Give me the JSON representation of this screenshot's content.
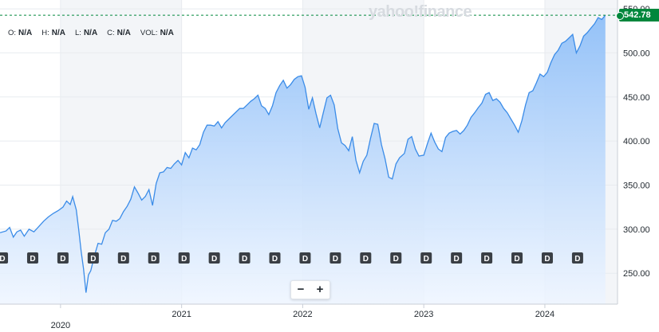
{
  "watermark": "yahoo!finance",
  "ohlc": {
    "o_label": "O:",
    "o_value": "N/A",
    "h_label": "H:",
    "h_value": "N/A",
    "l_label": "L:",
    "l_value": "N/A",
    "c_label": "C:",
    "c_value": "N/A",
    "vol_label": "VOL:",
    "vol_value": "N/A"
  },
  "last_price": "542.78",
  "zoom": {
    "minus": "−",
    "plus": "+"
  },
  "dividend_marker": "D",
  "colors": {
    "line": "#3b8ce8",
    "fill_top": "#8fbff8",
    "fill_bottom": "#f4f9ff",
    "last_price": "#00873c",
    "band": "#f3f5f8",
    "grid": "#e8ebef"
  },
  "chart_data": {
    "type": "area",
    "x_tick_labels": [
      "2020",
      "2021",
      "2022",
      "2023",
      "2024"
    ],
    "y_tick_labels": [
      "250.00",
      "300.00",
      "350.00",
      "400.00",
      "450.00",
      "500.00",
      "550.00"
    ],
    "ylim": [
      215,
      560
    ],
    "xlim": [
      2019.5,
      2024.6
    ],
    "grid": true,
    "last_value": 542.78,
    "dividend_dates": [
      2019.52,
      2019.77,
      2020.02,
      2020.27,
      2020.52,
      2020.77,
      2021.02,
      2021.27,
      2021.52,
      2021.77,
      2022.02,
      2022.27,
      2022.52,
      2022.77,
      2023.02,
      2023.27,
      2023.52,
      2023.77,
      2024.02,
      2024.27
    ],
    "series": [
      {
        "points": [
          [
            2019.5,
            296
          ],
          [
            2019.55,
            298
          ],
          [
            2019.58,
            302
          ],
          [
            2019.61,
            291
          ],
          [
            2019.64,
            297
          ],
          [
            2019.67,
            299
          ],
          [
            2019.7,
            292
          ],
          [
            2019.74,
            300
          ],
          [
            2019.78,
            297
          ],
          [
            2019.82,
            303
          ],
          [
            2019.86,
            309
          ],
          [
            2019.9,
            314
          ],
          [
            2019.94,
            318
          ],
          [
            2019.98,
            321
          ],
          [
            2020.02,
            325
          ],
          [
            2020.05,
            332
          ],
          [
            2020.08,
            328
          ],
          [
            2020.1,
            337
          ],
          [
            2020.13,
            322
          ],
          [
            2020.15,
            300
          ],
          [
            2020.17,
            275
          ],
          [
            2020.19,
            255
          ],
          [
            2020.21,
            228
          ],
          [
            2020.23,
            248
          ],
          [
            2020.25,
            253
          ],
          [
            2020.28,
            270
          ],
          [
            2020.31,
            284
          ],
          [
            2020.34,
            283
          ],
          [
            2020.37,
            296
          ],
          [
            2020.4,
            300
          ],
          [
            2020.43,
            310
          ],
          [
            2020.46,
            309
          ],
          [
            2020.49,
            312
          ],
          [
            2020.52,
            320
          ],
          [
            2020.55,
            326
          ],
          [
            2020.58,
            334
          ],
          [
            2020.61,
            348
          ],
          [
            2020.64,
            341
          ],
          [
            2020.67,
            333
          ],
          [
            2020.7,
            337
          ],
          [
            2020.73,
            345
          ],
          [
            2020.76,
            327
          ],
          [
            2020.79,
            352
          ],
          [
            2020.82,
            364
          ],
          [
            2020.85,
            365
          ],
          [
            2020.88,
            370
          ],
          [
            2020.91,
            369
          ],
          [
            2020.94,
            374
          ],
          [
            2020.97,
            378
          ],
          [
            2021.0,
            373
          ],
          [
            2021.03,
            387
          ],
          [
            2021.06,
            381
          ],
          [
            2021.09,
            392
          ],
          [
            2021.12,
            390
          ],
          [
            2021.15,
            396
          ],
          [
            2021.18,
            410
          ],
          [
            2021.21,
            418
          ],
          [
            2021.24,
            418
          ],
          [
            2021.27,
            417
          ],
          [
            2021.3,
            422
          ],
          [
            2021.33,
            415
          ],
          [
            2021.36,
            421
          ],
          [
            2021.39,
            425
          ],
          [
            2021.42,
            429
          ],
          [
            2021.45,
            433
          ],
          [
            2021.48,
            437
          ],
          [
            2021.51,
            437
          ],
          [
            2021.54,
            441
          ],
          [
            2021.57,
            445
          ],
          [
            2021.6,
            448
          ],
          [
            2021.63,
            452
          ],
          [
            2021.66,
            440
          ],
          [
            2021.69,
            437
          ],
          [
            2021.72,
            430
          ],
          [
            2021.75,
            440
          ],
          [
            2021.78,
            455
          ],
          [
            2021.81,
            463
          ],
          [
            2021.84,
            469
          ],
          [
            2021.87,
            460
          ],
          [
            2021.9,
            464
          ],
          [
            2021.93,
            470
          ],
          [
            2021.96,
            473
          ],
          [
            2021.99,
            474
          ],
          [
            2022.02,
            461
          ],
          [
            2022.05,
            436
          ],
          [
            2022.08,
            449
          ],
          [
            2022.11,
            431
          ],
          [
            2022.14,
            415
          ],
          [
            2022.17,
            432
          ],
          [
            2022.2,
            449
          ],
          [
            2022.23,
            452
          ],
          [
            2022.26,
            441
          ],
          [
            2022.29,
            414
          ],
          [
            2022.32,
            398
          ],
          [
            2022.35,
            395
          ],
          [
            2022.38,
            389
          ],
          [
            2022.41,
            405
          ],
          [
            2022.44,
            378
          ],
          [
            2022.47,
            364
          ],
          [
            2022.5,
            377
          ],
          [
            2022.53,
            384
          ],
          [
            2022.56,
            403
          ],
          [
            2022.59,
            420
          ],
          [
            2022.62,
            419
          ],
          [
            2022.65,
            396
          ],
          [
            2022.68,
            380
          ],
          [
            2022.71,
            359
          ],
          [
            2022.74,
            357
          ],
          [
            2022.77,
            374
          ],
          [
            2022.8,
            381
          ],
          [
            2022.84,
            386
          ],
          [
            2022.87,
            402
          ],
          [
            2022.9,
            405
          ],
          [
            2022.93,
            391
          ],
          [
            2022.96,
            383
          ],
          [
            2023.0,
            384
          ],
          [
            2023.03,
            397
          ],
          [
            2023.06,
            409
          ],
          [
            2023.09,
            399
          ],
          [
            2023.12,
            391
          ],
          [
            2023.15,
            388
          ],
          [
            2023.18,
            404
          ],
          [
            2023.21,
            409
          ],
          [
            2023.24,
            411
          ],
          [
            2023.27,
            412
          ],
          [
            2023.3,
            408
          ],
          [
            2023.33,
            412
          ],
          [
            2023.36,
            418
          ],
          [
            2023.39,
            427
          ],
          [
            2023.42,
            432
          ],
          [
            2023.45,
            438
          ],
          [
            2023.48,
            443
          ],
          [
            2023.51,
            453
          ],
          [
            2023.54,
            455
          ],
          [
            2023.57,
            446
          ],
          [
            2023.6,
            448
          ],
          [
            2023.63,
            444
          ],
          [
            2023.66,
            437
          ],
          [
            2023.69,
            432
          ],
          [
            2023.72,
            425
          ],
          [
            2023.75,
            418
          ],
          [
            2023.78,
            410
          ],
          [
            2023.81,
            423
          ],
          [
            2023.84,
            441
          ],
          [
            2023.87,
            455
          ],
          [
            2023.9,
            457
          ],
          [
            2023.93,
            466
          ],
          [
            2023.96,
            476
          ],
          [
            2023.99,
            473
          ],
          [
            2024.02,
            478
          ],
          [
            2024.05,
            489
          ],
          [
            2024.08,
            498
          ],
          [
            2024.11,
            503
          ],
          [
            2024.14,
            511
          ],
          [
            2024.17,
            513
          ],
          [
            2024.2,
            517
          ],
          [
            2024.23,
            521
          ],
          [
            2024.26,
            500
          ],
          [
            2024.29,
            508
          ],
          [
            2024.32,
            519
          ],
          [
            2024.35,
            523
          ],
          [
            2024.38,
            528
          ],
          [
            2024.41,
            533
          ],
          [
            2024.44,
            540
          ],
          [
            2024.47,
            538
          ],
          [
            2024.5,
            542.78
          ]
        ]
      }
    ]
  }
}
